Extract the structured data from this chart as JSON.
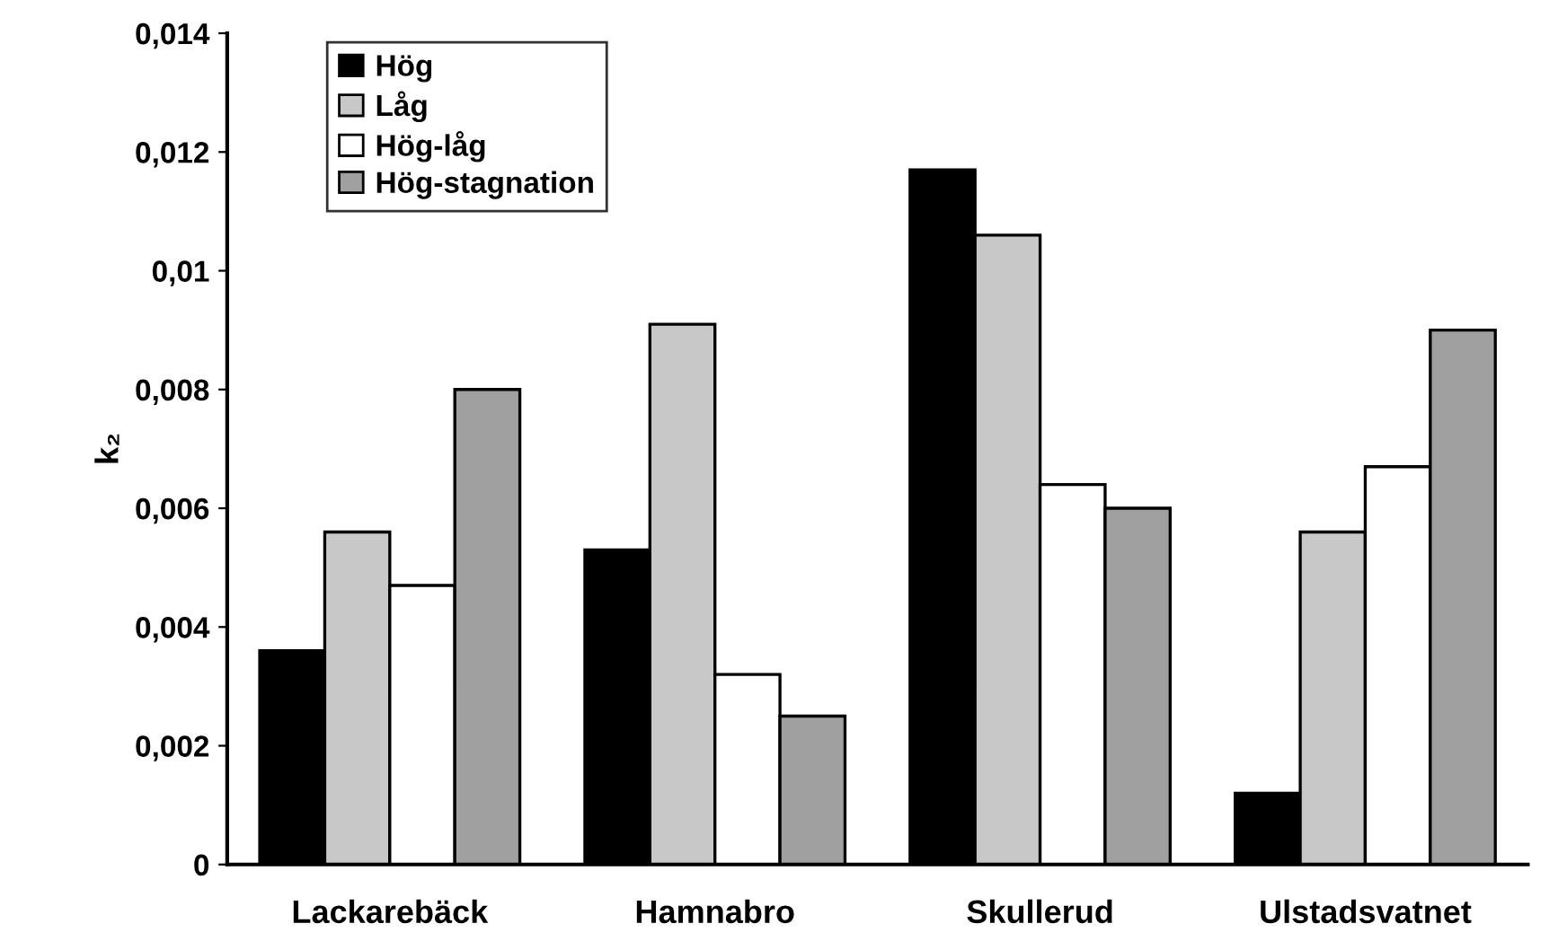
{
  "chart_data": {
    "type": "bar",
    "ylabel": "k₂",
    "categories": [
      "Lackarebäck",
      "Hamnabro",
      "Skullerud",
      "Ulstadsvatnet"
    ],
    "series": [
      {
        "name": "Hög",
        "color": "#000000",
        "values": [
          0.0036,
          0.0053,
          0.0117,
          0.0012
        ]
      },
      {
        "name": "Låg",
        "color": "#c8c8c8",
        "values": [
          0.0056,
          0.0091,
          0.0106,
          0.0056
        ]
      },
      {
        "name": "Hög-låg",
        "color": "#ffffff",
        "values": [
          0.0047,
          0.0032,
          0.0064,
          0.0067
        ]
      },
      {
        "name": "Hög-stagnation",
        "color": "#a0a0a0",
        "values": [
          0.008,
          0.0025,
          0.006,
          0.009
        ]
      }
    ],
    "ylim": [
      0,
      0.014
    ],
    "yticks": [
      {
        "value": 0,
        "label": "0"
      },
      {
        "value": 0.002,
        "label": "0,002"
      },
      {
        "value": 0.004,
        "label": "0,004"
      },
      {
        "value": 0.006,
        "label": "0,006"
      },
      {
        "value": 0.008,
        "label": "0,008"
      },
      {
        "value": 0.01,
        "label": "0,01"
      },
      {
        "value": 0.012,
        "label": "0,012"
      },
      {
        "value": 0.014,
        "label": "0,014"
      }
    ],
    "grid": false,
    "legend": "top left"
  }
}
